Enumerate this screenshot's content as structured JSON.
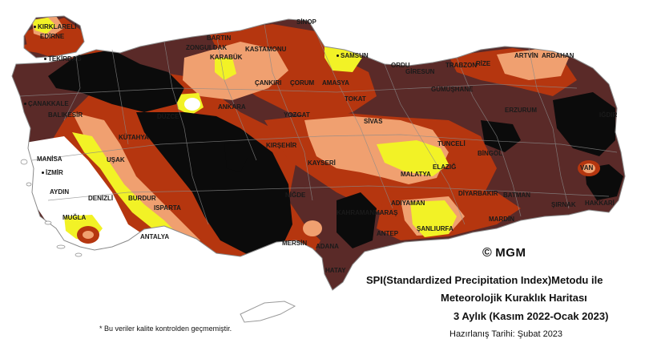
{
  "credit": {
    "symbol": "©",
    "text": "MGM"
  },
  "title": {
    "line1": "SPI(Standardized Precipitation Index)Metodu ile",
    "line2": "Meteorolojik Kuraklık Haritası",
    "line3": "3 Aylık (Kasım 2022-Ocak 2023)"
  },
  "prepared": "Hazırlanış Tarihi: Şubat 2023",
  "note": "* Bu veriler kalite kontrolden geçmemiştir.",
  "colors": {
    "very_dark": "#0b0b0b",
    "dark_brown": "#5a2a28",
    "rust": "#b5360f",
    "orange_salmon": "#f0a070",
    "yellow": "#f2f226",
    "white": "#ffffff",
    "border_gray": "#8a8a8a"
  },
  "cities": [
    {
      "name": "KIRKLARELİ"
    },
    {
      "name": "EDİRNE"
    },
    {
      "name": "TEKİRDAĞ"
    },
    {
      "name": "ÇANAKKALE"
    },
    {
      "name": "BALIKESİR"
    },
    {
      "name": "MANİSA"
    },
    {
      "name": "İZMİR"
    },
    {
      "name": "AYDIN"
    },
    {
      "name": "DENİZLİ"
    },
    {
      "name": "MUĞLA"
    },
    {
      "name": "UŞAK"
    },
    {
      "name": "KÜTAHYA"
    },
    {
      "name": "BURDUR"
    },
    {
      "name": "ISPARTA"
    },
    {
      "name": "ANTALYA"
    },
    {
      "name": "BARTIN"
    },
    {
      "name": "ZONGULDAK"
    },
    {
      "name": "KARABÜK"
    },
    {
      "name": "KASTAMONU"
    },
    {
      "name": "SİNOP"
    },
    {
      "name": "SAMSUN"
    },
    {
      "name": "ORDU"
    },
    {
      "name": "GİRESUN"
    },
    {
      "name": "TRABZON"
    },
    {
      "name": "RİZE"
    },
    {
      "name": "ARTVİN"
    },
    {
      "name": "ARDAHAN"
    },
    {
      "name": "ÇANKIRI"
    },
    {
      "name": "ÇORUM"
    },
    {
      "name": "AMASYA"
    },
    {
      "name": "TOKAT"
    },
    {
      "name": "GÜMÜŞHANE"
    },
    {
      "name": "ERZURUM"
    },
    {
      "name": "IĞDIR"
    },
    {
      "name": "ANKARA"
    },
    {
      "name": "YOZGAT"
    },
    {
      "name": "SİVAS"
    },
    {
      "name": "TUNCELİ"
    },
    {
      "name": "BİNGÖL"
    },
    {
      "name": "KIRŞEHİR"
    },
    {
      "name": "KAYSERİ"
    },
    {
      "name": "MALATYA"
    },
    {
      "name": "ELAZIĞ"
    },
    {
      "name": "VAN"
    },
    {
      "name": "DİYARBAKIR"
    },
    {
      "name": "BATMAN"
    },
    {
      "name": "ŞIRNAK"
    },
    {
      "name": "HAKKARİ"
    },
    {
      "name": "ADIYAMAN"
    },
    {
      "name": "KAHRAMANMARAŞ"
    },
    {
      "name": "ŞANLIURFA"
    },
    {
      "name": "MARDİN"
    },
    {
      "name": "ANTEP"
    },
    {
      "name": "ADANA"
    },
    {
      "name": "MERSİN"
    },
    {
      "name": "HATAY"
    },
    {
      "name": "NİĞDE"
    },
    {
      "name": "DÜZCE"
    },
    {
      "name": "AFYON"
    },
    {
      "name": "MUŞ"
    }
  ]
}
